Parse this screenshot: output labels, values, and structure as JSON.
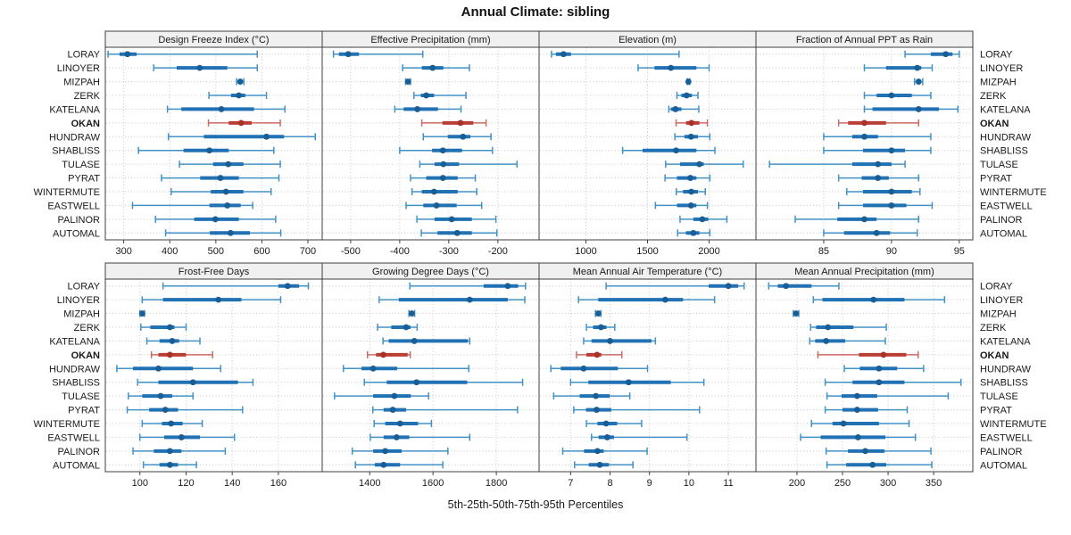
{
  "title": "Annual Climate: sibling",
  "caption": "5th-25th-50th-75th-95th Percentiles",
  "highlight_station": "OKAN",
  "colors": {
    "blue_line": "#4292c6",
    "blue_bar": "#2171b5",
    "blue_dot": "#1a5e96",
    "red_line": "#cd6a62",
    "red_bar": "#bb3e35",
    "red_dot": "#a93228",
    "header_bg": "#f0f0f0",
    "panel_border": "#3f3f3f",
    "grid": "#c6c6c6",
    "text": "#1a1a1a"
  },
  "chart_data": {
    "type": "trellis-percentile-dotplot",
    "percentile_labels": [
      "5th",
      "25th",
      "50th",
      "75th",
      "95th"
    ],
    "layout": {
      "rows": 2,
      "cols": 4
    },
    "stations": [
      "LORAY",
      "LINOYER",
      "MIZPAH",
      "ZERK",
      "KATELANA",
      "OKAN",
      "HUNDRAW",
      "SHABLISS",
      "TULASE",
      "PYRAT",
      "WINTERMUTE",
      "EASTWELL",
      "PALINOR",
      "AUTOMAL"
    ],
    "panels": [
      {
        "title": "Design Freeze Index (°C)",
        "xlim": [
          260,
          731
        ],
        "ticks": [
          300,
          400,
          500,
          600,
          700
        ],
        "values": {
          "LORAY": [
            266,
            291,
            308,
            328,
            590
          ],
          "LINOYER": [
            365,
            415,
            465,
            525,
            590
          ],
          "MIZPAH": [
            545,
            550,
            553,
            556,
            561
          ],
          "ZERK": [
            485,
            533,
            550,
            564,
            610
          ],
          "KATELANA": [
            395,
            425,
            512,
            583,
            650
          ],
          "OKAN": [
            484,
            528,
            555,
            578,
            640
          ],
          "HUNDRAW": [
            397,
            474,
            610,
            648,
            716
          ],
          "SHABLISS": [
            332,
            430,
            486,
            528,
            626
          ],
          "TULASE": [
            421,
            494,
            527,
            560,
            640
          ],
          "PYRAT": [
            382,
            466,
            510,
            550,
            637
          ],
          "WINTERMUTE": [
            403,
            489,
            522,
            560,
            620
          ],
          "EASTWELL": [
            319,
            486,
            525,
            554,
            580
          ],
          "PALINOR": [
            369,
            453,
            499,
            550,
            630
          ],
          "AUTOMAL": [
            391,
            487,
            532,
            574,
            641
          ]
        }
      },
      {
        "title": "Effective Precipitation (mm)",
        "xlim": [
          -558,
          -116
        ],
        "ticks": [
          -500,
          -400,
          -300,
          -200
        ],
        "values": {
          "LORAY": [
            -535,
            -524,
            -505,
            -483,
            -353
          ],
          "LINOYER": [
            -394,
            -355,
            -333,
            -311,
            -258
          ],
          "MIZPAH": [
            -388,
            -385,
            -383,
            -381,
            -378
          ],
          "ZERK": [
            -371,
            -357,
            -346,
            -330,
            -265
          ],
          "KATELANA": [
            -410,
            -392,
            -364,
            -322,
            -275
          ],
          "OKAN": [
            -355,
            -313,
            -276,
            -250,
            -224
          ],
          "HUNDRAW": [
            -352,
            -302,
            -271,
            -256,
            -214
          ],
          "SHABLISS": [
            -400,
            -334,
            -312,
            -273,
            -211
          ],
          "TULASE": [
            -359,
            -329,
            -311,
            -279,
            -161
          ],
          "PYRAT": [
            -378,
            -346,
            -312,
            -282,
            -246
          ],
          "WINTERMUTE": [
            -375,
            -355,
            -330,
            -282,
            -243
          ],
          "EASTWELL": [
            -387,
            -352,
            -325,
            -284,
            -233
          ],
          "PALINOR": [
            -365,
            -329,
            -294,
            -253,
            -204
          ],
          "AUTOMAL": [
            -356,
            -323,
            -283,
            -253,
            -202
          ]
        }
      },
      {
        "title": "Elevation (m)",
        "xlim": [
          620,
          2380
        ],
        "ticks": [
          1000,
          1500,
          2000
        ],
        "values": {
          "LORAY": [
            721,
            757,
            818,
            879,
            1756
          ],
          "LINOYER": [
            1424,
            1557,
            1690,
            1897,
            2000
          ],
          "MIZPAH": [
            1822,
            1828,
            1832,
            1836,
            1842
          ],
          "ZERK": [
            1739,
            1775,
            1817,
            1860,
            1909
          ],
          "KATELANA": [
            1673,
            1690,
            1727,
            1775,
            1916
          ],
          "OKAN": [
            1732,
            1812,
            1857,
            1921,
            1986
          ],
          "HUNDRAW": [
            1722,
            1800,
            1853,
            1909,
            2006
          ],
          "SHABLISS": [
            1298,
            1460,
            1732,
            1897,
            2047
          ],
          "TULASE": [
            1647,
            1764,
            1921,
            1957,
            2277
          ],
          "PYRAT": [
            1642,
            1739,
            1848,
            1897,
            2006
          ],
          "WINTERMUTE": [
            1734,
            1788,
            1856,
            1909,
            1969
          ],
          "EASTWELL": [
            1564,
            1739,
            1853,
            1897,
            1986
          ],
          "PALINOR": [
            1764,
            1872,
            1945,
            1993,
            2144
          ],
          "AUTOMAL": [
            1744,
            1812,
            1872,
            1921,
            2006
          ]
        }
      },
      {
        "title": "Fraction of Annual PPT as Rain",
        "xlim": [
          80,
          96
        ],
        "ticks": [
          85,
          90,
          95
        ],
        "values": {
          "LORAY": [
            91.0,
            92.9,
            94.0,
            94.5,
            95.0
          ],
          "LINOYER": [
            88.0,
            89.6,
            91.9,
            92.2,
            93.0
          ],
          "MIZPAH": [
            91.7,
            91.9,
            92.0,
            92.1,
            92.3
          ],
          "ZERK": [
            88.0,
            88.9,
            90.0,
            91.5,
            92.9
          ],
          "KATELANA": [
            88.0,
            88.6,
            92.0,
            93.5,
            94.9
          ],
          "OKAN": [
            86.1,
            86.8,
            88.0,
            89.6,
            92.0
          ],
          "HUNDRAW": [
            85.0,
            87.1,
            88.0,
            89.0,
            92.9
          ],
          "SHABLISS": [
            85.0,
            87.9,
            90.0,
            91.0,
            92.9
          ],
          "TULASE": [
            81.0,
            87.1,
            89.0,
            90.0,
            91.0
          ],
          "PYRAT": [
            86.1,
            87.8,
            89.0,
            89.8,
            92.0
          ],
          "WINTERMUTE": [
            86.7,
            87.9,
            90.0,
            91.5,
            92.1
          ],
          "EASTWELL": [
            86.1,
            87.9,
            90.0,
            91.1,
            93.0
          ],
          "PALINOR": [
            82.9,
            86.0,
            88.0,
            88.9,
            92.0
          ],
          "AUTOMAL": [
            85.0,
            86.5,
            88.9,
            89.9,
            91.9
          ]
        }
      },
      {
        "title": "Frost-Free Days",
        "xlim": [
          85,
          179
        ],
        "ticks": [
          100,
          120,
          140,
          160
        ],
        "values": {
          "LORAY": [
            110,
            160,
            164,
            169,
            173
          ],
          "LINOYER": [
            101,
            110,
            134,
            144,
            161
          ],
          "MIZPAH": [
            100,
            100.5,
            101,
            101.5,
            102
          ],
          "ZERK": [
            100.4,
            104.5,
            113,
            115,
            120
          ],
          "KATELANA": [
            103,
            108.5,
            114,
            117,
            126
          ],
          "OKAN": [
            105,
            108,
            113,
            120,
            131.5
          ],
          "HUNDRAW": [
            90,
            97,
            108,
            123,
            135
          ],
          "SHABLISS": [
            99,
            108,
            123,
            142.5,
            149
          ],
          "TULASE": [
            95,
            101,
            109,
            114,
            123
          ],
          "PYRAT": [
            94.5,
            104,
            111,
            116.5,
            144.5
          ],
          "WINTERMUTE": [
            101,
            109.5,
            113.5,
            118.5,
            127
          ],
          "EASTWELL": [
            100,
            110.5,
            118,
            126,
            141
          ],
          "PALINOR": [
            97,
            106,
            113,
            118,
            137
          ],
          "AUTOMAL": [
            101.5,
            108.5,
            113,
            116.5,
            124.5
          ]
        }
      },
      {
        "title": "Growing Degree Days (°C)",
        "xlim": [
          1250,
          1935
        ],
        "ticks": [
          1400,
          1600,
          1800
        ],
        "values": {
          "LORAY": [
            1527,
            1760,
            1836,
            1869,
            1892
          ],
          "LINOYER": [
            1430,
            1492,
            1716,
            1836,
            1890
          ],
          "MIZPAH": [
            1524,
            1529,
            1533,
            1537,
            1542
          ],
          "ZERK": [
            1425,
            1468,
            1515,
            1529,
            1550
          ],
          "KATELANA": [
            1442,
            1460,
            1541,
            1710,
            1716
          ],
          "OKAN": [
            1393,
            1420,
            1443,
            1520,
            1528
          ],
          "HUNDRAW": [
            1317,
            1374,
            1411,
            1487,
            1713
          ],
          "SHABLISS": [
            1383,
            1454,
            1548,
            1708,
            1883
          ],
          "TULASE": [
            1289,
            1411,
            1478,
            1530,
            1586
          ],
          "PYRAT": [
            1410,
            1444,
            1473,
            1515,
            1867
          ],
          "WINTERMUTE": [
            1414,
            1449,
            1496,
            1553,
            1595
          ],
          "EASTWELL": [
            1402,
            1444,
            1485,
            1525,
            1716
          ],
          "PALINOR": [
            1345,
            1411,
            1449,
            1501,
            1647
          ],
          "AUTOMAL": [
            1355,
            1416,
            1444,
            1496,
            1631
          ]
        }
      },
      {
        "title": "Mean Annual Air Temperature (°C)",
        "xlim": [
          6.2,
          11.7
        ],
        "ticks": [
          7,
          8,
          9,
          10,
          11
        ],
        "values": {
          "LORAY": [
            7.9,
            10.5,
            11.0,
            11.25,
            11.4
          ],
          "LINOYER": [
            7.2,
            7.7,
            9.4,
            9.85,
            10.65
          ],
          "MIZPAH": [
            7.63,
            7.67,
            7.7,
            7.73,
            7.77
          ],
          "ZERK": [
            7.4,
            7.57,
            7.77,
            7.91,
            8.12
          ],
          "KATELANA": [
            7.33,
            7.53,
            8.0,
            9.05,
            9.15
          ],
          "OKAN": [
            7.15,
            7.4,
            7.67,
            7.78,
            8.3
          ],
          "HUNDRAW": [
            6.5,
            6.75,
            7.33,
            8.2,
            8.95
          ],
          "SHABLISS": [
            7.0,
            7.45,
            8.47,
            9.54,
            10.38
          ],
          "TULASE": [
            6.57,
            7.23,
            7.64,
            7.99,
            8.5
          ],
          "PYRAT": [
            7.08,
            7.39,
            7.66,
            8.03,
            10.27
          ],
          "WINTERMUTE": [
            7.4,
            7.68,
            7.9,
            8.18,
            8.8
          ],
          "EASTWELL": [
            7.53,
            7.71,
            7.93,
            8.1,
            9.95
          ],
          "PALINOR": [
            6.8,
            7.34,
            7.68,
            7.84,
            8.94
          ],
          "AUTOMAL": [
            7.1,
            7.46,
            7.74,
            7.97,
            8.58
          ]
        }
      },
      {
        "title": "Mean Annual Precipitation (mm)",
        "xlim": [
          155,
          393
        ],
        "ticks": [
          200,
          250,
          300,
          350
        ],
        "values": {
          "LORAY": [
            169,
            179,
            188,
            216,
            246
          ],
          "LINOYER": [
            218,
            228,
            284,
            318,
            362
          ],
          "MIZPAH": [
            196,
            198,
            199,
            200,
            202
          ],
          "ZERK": [
            215,
            221,
            234,
            262,
            298
          ],
          "KATELANA": [
            214,
            220,
            232,
            253,
            297
          ],
          "OKAN": [
            223,
            268,
            295,
            320,
            333
          ],
          "HUNDRAW": [
            252,
            269,
            290,
            310,
            339
          ],
          "SHABLISS": [
            231,
            261,
            290,
            318,
            380
          ],
          "TULASE": [
            233,
            249,
            266,
            288,
            366
          ],
          "PYRAT": [
            231,
            250,
            266,
            289,
            321
          ],
          "WINTERMUTE": [
            216,
            239,
            251,
            290,
            323
          ],
          "EASTWELL": [
            204,
            226,
            267,
            297,
            330
          ],
          "PALINOR": [
            232,
            256,
            275,
            296,
            347
          ],
          "AUTOMAL": [
            233,
            254,
            283,
            298,
            348
          ]
        }
      }
    ]
  }
}
